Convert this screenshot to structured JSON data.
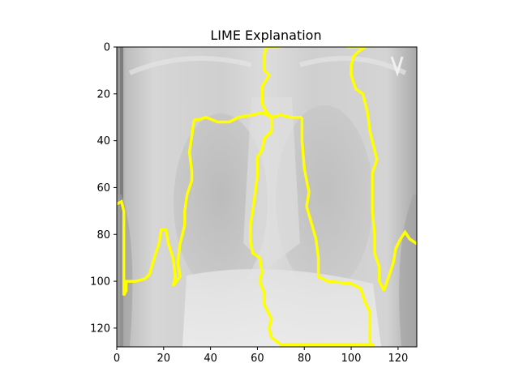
{
  "chart_data": {
    "type": "heatmap",
    "title": "LIME Explanation",
    "image_description_kind": "grayscale chest x-ray with yellow superpixel boundaries",
    "xlim": [
      0,
      128
    ],
    "ylim": [
      128,
      0
    ],
    "x_ticks": [
      0,
      20,
      40,
      60,
      80,
      100,
      120
    ],
    "y_ticks": [
      0,
      20,
      40,
      60,
      80,
      100,
      120
    ],
    "grid": false,
    "boundary_color": "#ffff00",
    "boundaries": [
      [
        [
          64,
          0
        ],
        [
          70,
          0
        ]
      ],
      [
        [
          64,
          0
        ],
        [
          63,
          3
        ],
        [
          63,
          10
        ],
        [
          65,
          12
        ],
        [
          62,
          17
        ],
        [
          62,
          24
        ],
        [
          64,
          28
        ],
        [
          66,
          30
        ],
        [
          66,
          36
        ],
        [
          63,
          39
        ],
        [
          62,
          44
        ],
        [
          60,
          47
        ],
        [
          60,
          55
        ],
        [
          59,
          63
        ],
        [
          58,
          70
        ],
        [
          57,
          76
        ],
        [
          57,
          83
        ],
        [
          58,
          88
        ],
        [
          61,
          90
        ],
        [
          62,
          96
        ],
        [
          61,
          100
        ],
        [
          63,
          105
        ],
        [
          63,
          110
        ],
        [
          66,
          116
        ],
        [
          65,
          120
        ],
        [
          66,
          124
        ],
        [
          70,
          127
        ],
        [
          110,
          127
        ]
      ],
      [
        [
          66,
          30
        ],
        [
          70,
          29
        ],
        [
          74,
          30
        ],
        [
          79,
          30
        ]
      ],
      [
        [
          79,
          30
        ],
        [
          79,
          40
        ],
        [
          80,
          52
        ],
        [
          82,
          62
        ],
        [
          81,
          68
        ],
        [
          83,
          75
        ],
        [
          85,
          82
        ],
        [
          86,
          90
        ],
        [
          86,
          98
        ],
        [
          90,
          100
        ],
        [
          100,
          101
        ],
        [
          104,
          103
        ],
        [
          106,
          109
        ],
        [
          108,
          113
        ],
        [
          108,
          127
        ]
      ],
      [
        [
          33,
          31
        ],
        [
          35,
          31
        ],
        [
          38,
          30
        ],
        [
          43,
          32
        ],
        [
          48,
          32
        ],
        [
          52,
          30
        ],
        [
          58,
          29
        ],
        [
          62,
          28
        ],
        [
          66,
          30
        ]
      ],
      [
        [
          33,
          31
        ],
        [
          32,
          38
        ],
        [
          31,
          45
        ],
        [
          32,
          53
        ],
        [
          32,
          57
        ],
        [
          30,
          63
        ],
        [
          29,
          70
        ],
        [
          29,
          76
        ],
        [
          27,
          84
        ],
        [
          26,
          92
        ],
        [
          27,
          98
        ],
        [
          24,
          102
        ]
      ],
      [
        [
          98,
          0
        ],
        [
          106,
          0
        ],
        [
          103,
          2
        ],
        [
          101,
          4
        ],
        [
          100,
          8
        ],
        [
          100,
          12
        ],
        [
          102,
          18
        ],
        [
          105,
          20
        ],
        [
          107,
          28
        ],
        [
          108,
          36
        ],
        [
          110,
          44
        ],
        [
          111,
          48
        ],
        [
          109,
          54
        ],
        [
          109,
          62
        ],
        [
          109,
          70
        ],
        [
          110,
          80
        ],
        [
          110,
          88
        ],
        [
          112,
          94
        ],
        [
          112,
          100
        ],
        [
          114,
          104
        ]
      ],
      [
        [
          114,
          104
        ],
        [
          116,
          98
        ],
        [
          118,
          92
        ],
        [
          119,
          86
        ],
        [
          121,
          82
        ],
        [
          123,
          79
        ],
        [
          125,
          82
        ],
        [
          128,
          84
        ]
      ],
      [
        [
          0,
          67
        ],
        [
          2,
          66
        ],
        [
          3,
          70
        ],
        [
          3,
          85
        ],
        [
          3,
          100
        ],
        [
          3,
          106
        ],
        [
          4,
          104
        ],
        [
          4,
          100
        ],
        [
          8,
          100
        ],
        [
          12,
          99
        ],
        [
          14,
          97
        ],
        [
          16,
          90
        ],
        [
          18,
          84
        ],
        [
          19,
          78
        ],
        [
          21,
          78
        ],
        [
          22,
          84
        ],
        [
          24,
          90
        ],
        [
          25,
          98
        ],
        [
          24,
          102
        ]
      ]
    ]
  }
}
